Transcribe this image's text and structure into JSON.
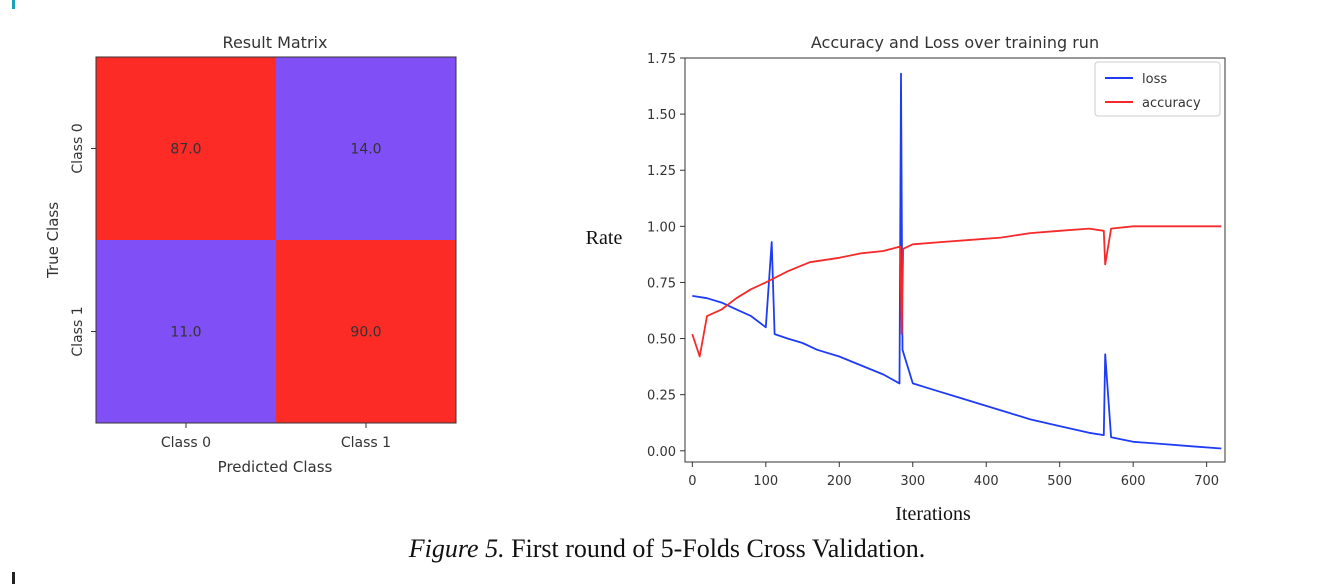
{
  "caption": {
    "figure_label": "Figure 5.",
    "text": " First round of 5-Folds Cross Validation."
  },
  "colors": {
    "high": "#fd2b26",
    "low": "#8050f6",
    "loss": "#1f3cf5",
    "accuracy": "#f52a2a"
  },
  "chart_data": [
    {
      "type": "heatmap",
      "title": "Result Matrix",
      "xlabel": "Predicted Class",
      "ylabel": "True Class",
      "x_categories": [
        "Class 0",
        "Class 1"
      ],
      "y_categories": [
        "Class 0",
        "Class 1"
      ],
      "values": [
        [
          87.0,
          14.0
        ],
        [
          11.0,
          90.0
        ]
      ],
      "value_labels": [
        [
          "87.0",
          "14.0"
        ],
        [
          "11.0",
          "90.0"
        ]
      ]
    },
    {
      "type": "line",
      "title": "Accuracy and Loss over training run",
      "xlabel": "Iterations",
      "ylabel": "Rate",
      "xlim": [
        -10,
        725
      ],
      "ylim": [
        -0.05,
        1.75
      ],
      "xticks": [
        0,
        100,
        200,
        300,
        400,
        500,
        600,
        700
      ],
      "yticks": [
        0.0,
        0.25,
        0.5,
        0.75,
        1.0,
        1.25,
        1.5,
        1.75
      ],
      "ytick_labels": [
        "0.00",
        "0.25",
        "0.50",
        "0.75",
        "1.00",
        "1.25",
        "1.50",
        "1.75"
      ],
      "legend_position": "top-right",
      "grid": false,
      "series": [
        {
          "name": "loss",
          "x": [
            0,
            20,
            40,
            60,
            80,
            100,
            108,
            112,
            130,
            150,
            170,
            200,
            230,
            260,
            282,
            284,
            286,
            300,
            330,
            360,
            400,
            430,
            460,
            500,
            540,
            560,
            562,
            570,
            600,
            640,
            680,
            720
          ],
          "y": [
            0.69,
            0.68,
            0.66,
            0.63,
            0.6,
            0.55,
            0.93,
            0.52,
            0.5,
            0.48,
            0.45,
            0.42,
            0.38,
            0.34,
            0.3,
            1.68,
            0.45,
            0.3,
            0.27,
            0.24,
            0.2,
            0.17,
            0.14,
            0.11,
            0.08,
            0.07,
            0.43,
            0.06,
            0.04,
            0.03,
            0.02,
            0.01
          ]
        },
        {
          "name": "accuracy",
          "x": [
            0,
            10,
            20,
            40,
            60,
            80,
            100,
            130,
            160,
            200,
            230,
            260,
            283,
            285,
            287,
            300,
            340,
            380,
            420,
            460,
            500,
            540,
            560,
            562,
            570,
            600,
            650,
            720
          ],
          "y": [
            0.52,
            0.42,
            0.6,
            0.63,
            0.68,
            0.72,
            0.75,
            0.8,
            0.84,
            0.86,
            0.88,
            0.89,
            0.91,
            0.52,
            0.9,
            0.92,
            0.93,
            0.94,
            0.95,
            0.97,
            0.98,
            0.99,
            0.98,
            0.83,
            0.99,
            1.0,
            1.0,
            1.0
          ]
        }
      ]
    }
  ]
}
